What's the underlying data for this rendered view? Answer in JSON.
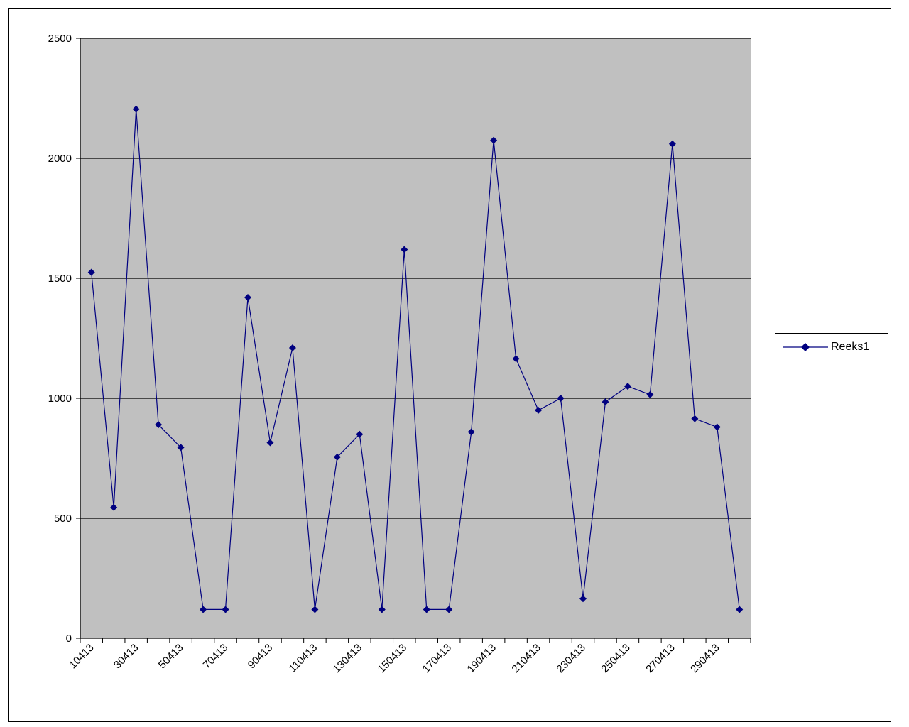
{
  "colors": {
    "plot_background": "#c0c0c0",
    "series_line": "#000080",
    "gridline": "#000000",
    "page_background": "#ffffff"
  },
  "legend": {
    "label": "Reeks1",
    "placement": "right"
  },
  "chart_data": {
    "type": "line",
    "title": "",
    "xlabel": "",
    "ylabel": "",
    "ylim": [
      0,
      2500
    ],
    "yticks": [
      0,
      500,
      1000,
      1500,
      2000,
      2500
    ],
    "grid": true,
    "legend_placement": "right",
    "x_tick_labels": [
      "10413",
      "30413",
      "50413",
      "70413",
      "90413",
      "110413",
      "130413",
      "150413",
      "170413",
      "190413",
      "210413",
      "230413",
      "250413",
      "270413",
      "290413"
    ],
    "series": [
      {
        "name": "Reeks1",
        "marker": "diamond",
        "values": [
          1525,
          545,
          2205,
          890,
          795,
          120,
          120,
          1420,
          815,
          1210,
          120,
          755,
          850,
          120,
          1620,
          120,
          120,
          860,
          2075,
          1165,
          950,
          1000,
          165,
          985,
          1050,
          1015,
          2060,
          915,
          880,
          120
        ]
      }
    ]
  }
}
